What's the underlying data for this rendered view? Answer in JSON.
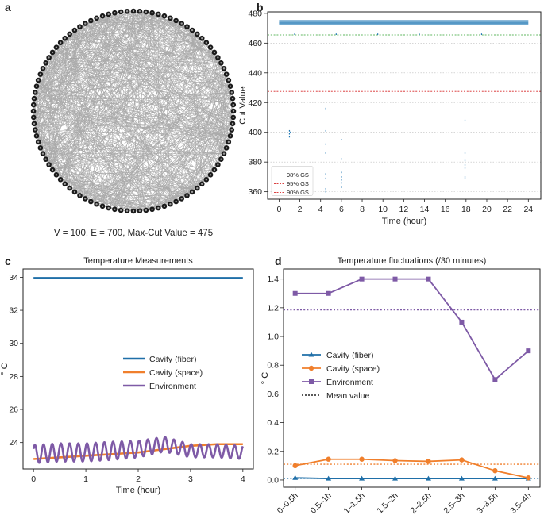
{
  "panels": {
    "a": {
      "letter": "a",
      "caption": "V = 100, E = 700, Max-Cut Value = 475"
    },
    "b": {
      "letter": "b"
    },
    "c": {
      "letter": "c"
    },
    "d": {
      "letter": "d"
    }
  },
  "chart_data": [
    {
      "id": "b",
      "type": "scatter",
      "title": "",
      "xlabel": "Time (hour)",
      "ylabel": "Cut Value",
      "xlim": [
        -1.1,
        25.2
      ],
      "ylim": [
        355,
        481
      ],
      "xticks": [
        "0",
        "2",
        "4",
        "6",
        "8",
        "10",
        "12",
        "14",
        "16",
        "18",
        "20",
        "22",
        "24"
      ],
      "yticks": [
        "360",
        "380",
        "400",
        "420",
        "440",
        "460",
        "480"
      ],
      "ygrid": [
        460,
        440,
        420,
        400,
        380,
        360
      ],
      "legend_position": "lower-left",
      "reference_lines": [
        {
          "name": "98% GS",
          "value": 465.5,
          "color": "#2ca02c"
        },
        {
          "name": "95% GS",
          "value": 451.3,
          "color": "#d62728"
        },
        {
          "name": "90% GS",
          "value": 427.5,
          "color": "#d62728"
        }
      ],
      "series": [
        {
          "color": "#1f77b4",
          "band": {
            "x_start": 0,
            "x_end": 24,
            "y_values": [
              473,
              474,
              475
            ]
          },
          "points": [
            [
              1.0,
              401
            ],
            [
              1.0,
              399
            ],
            [
              1.0,
              397
            ],
            [
              1.1,
              400
            ],
            [
              4.5,
              416
            ],
            [
              4.5,
              401
            ],
            [
              4.5,
              392
            ],
            [
              4.5,
              386
            ],
            [
              4.5,
              372
            ],
            [
              4.5,
              369
            ],
            [
              4.5,
              362
            ],
            [
              4.5,
              360
            ],
            [
              6.0,
              395
            ],
            [
              6.0,
              382
            ],
            [
              6.0,
              373
            ],
            [
              6.0,
              370
            ],
            [
              6.0,
              368
            ],
            [
              6.0,
              366
            ],
            [
              6.0,
              363
            ],
            [
              17.9,
              408
            ],
            [
              17.9,
              386
            ],
            [
              17.9,
              381
            ],
            [
              17.9,
              378
            ],
            [
              17.9,
              376
            ],
            [
              17.9,
              370
            ],
            [
              17.9,
              369
            ],
            [
              1.5,
              466
            ],
            [
              5.5,
              466
            ],
            [
              9.5,
              466
            ],
            [
              13.5,
              466
            ],
            [
              19.5,
              466
            ]
          ]
        }
      ]
    },
    {
      "id": "c",
      "type": "line",
      "title": "Temperature Measurements",
      "xlabel": "Time (hour)",
      "ylabel": "° C",
      "xlim": [
        -0.2,
        4.2
      ],
      "ylim": [
        22.4,
        34.5
      ],
      "xticks": [
        "0",
        "1",
        "2",
        "3",
        "4"
      ],
      "yticks": [
        "24",
        "26",
        "28",
        "30",
        "32",
        "34"
      ],
      "legend_position": "center-right",
      "series": [
        {
          "name": "Cavity (fiber)",
          "color": "#1f6fa8",
          "x": [
            0,
            4
          ],
          "values": [
            33.95,
            33.95
          ]
        },
        {
          "name": "Cavity (space)",
          "color": "#f07f2c",
          "x": [
            0,
            0.5,
            1,
            1.5,
            2,
            2.5,
            3,
            3.5,
            4
          ],
          "values": [
            23.0,
            23.1,
            23.2,
            23.3,
            23.4,
            23.6,
            23.8,
            23.9,
            23.9
          ]
        },
        {
          "name": "Environment",
          "color": "#7e5aa6",
          "x": [
            0,
            0.5,
            1,
            1.5,
            2,
            2.5,
            3,
            3.5,
            4
          ],
          "values": [
            23.3,
            23.4,
            23.4,
            23.5,
            23.6,
            23.9,
            23.5,
            23.5,
            23.4
          ],
          "oscillation_amplitude": [
            0.55,
            0.55,
            0.55,
            0.55,
            0.5,
            0.45,
            0.4,
            0.4,
            0.4
          ],
          "oscillation_period_hours": 0.166
        }
      ]
    },
    {
      "id": "d",
      "type": "line",
      "title": "Temperature fluctuations (/30 minutes)",
      "xlabel": "",
      "ylabel": "° C",
      "ylim": [
        -0.05,
        1.47
      ],
      "categories": [
        "0–0.5h",
        "0.5–1h",
        "1–1.5h",
        "1.5–2h",
        "2–2.5h",
        "2.5–3h",
        "3–3.5h",
        "3.5–4h"
      ],
      "yticks": [
        "0.0",
        "0.2",
        "0.4",
        "0.6",
        "0.8",
        "1.0",
        "1.2",
        "1.4"
      ],
      "legend_position": "center-left",
      "series": [
        {
          "name": "Cavity (fiber)",
          "color": "#1f6fa8",
          "marker": "triangle",
          "values": [
            0.015,
            0.01,
            0.01,
            0.01,
            0.01,
            0.01,
            0.01,
            0.01
          ],
          "mean": 0.011
        },
        {
          "name": "Cavity (space)",
          "color": "#f07f2c",
          "marker": "circle",
          "values": [
            0.1,
            0.145,
            0.145,
            0.135,
            0.13,
            0.14,
            0.065,
            0.015
          ],
          "mean": 0.11
        },
        {
          "name": "Environment",
          "color": "#7e5aa6",
          "marker": "square",
          "values": [
            1.3,
            1.3,
            1.4,
            1.4,
            1.4,
            1.1,
            0.7,
            0.9
          ],
          "mean": 1.185
        }
      ],
      "mean_legend": "Mean value"
    }
  ]
}
